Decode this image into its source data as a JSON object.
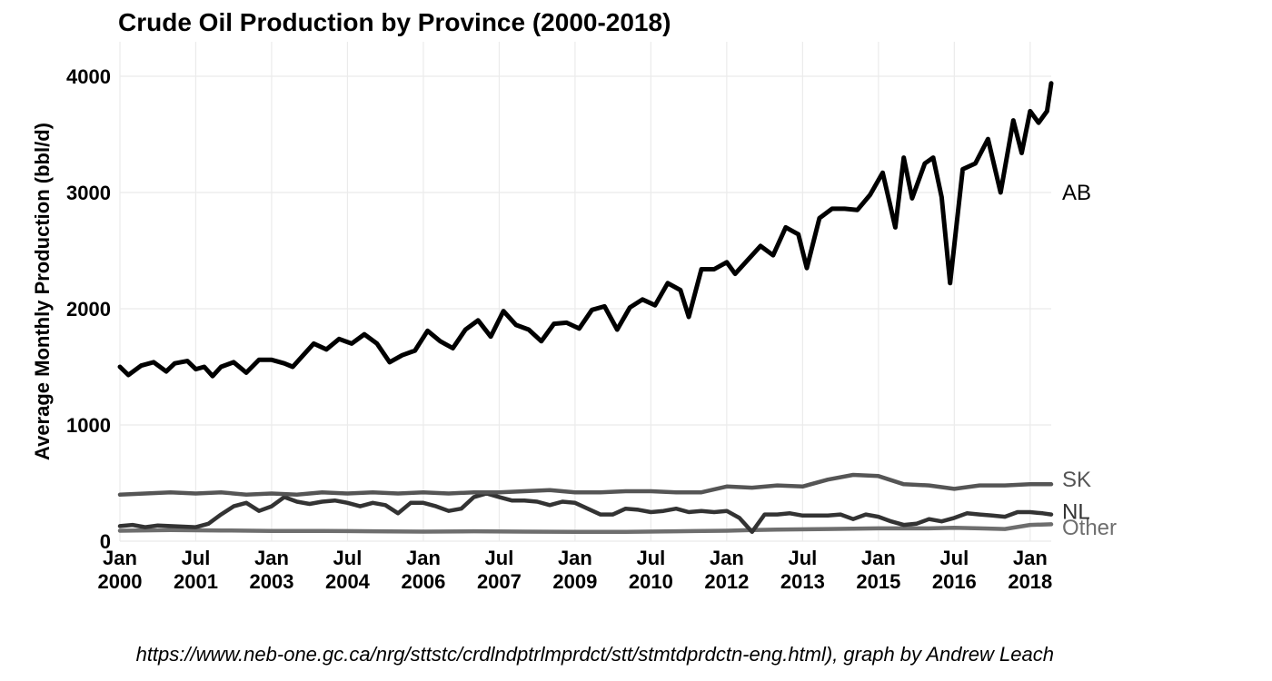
{
  "caption": "https://www.neb-one.gc.ca/nrg/sttstc/crdlndptrlmprdct/stt/stmtdprdctn-eng.html), graph by Andrew Leach",
  "chart_data": {
    "type": "line",
    "title": "Crude Oil Production by Province (2000-2018)",
    "xlabel": "",
    "ylabel": "Average Monthly Production (bbl/d)",
    "ylim": [
      0,
      4000
    ],
    "xlim": [
      "2000-01",
      "2018-06"
    ],
    "grid": true,
    "legend": "direct labels at right end of lines",
    "y_ticks": [
      "0",
      "1000",
      "2000",
      "3000",
      "4000"
    ],
    "x_ticks": [
      {
        "date": "2000-01",
        "line1": "Jan",
        "line2": "2000"
      },
      {
        "date": "2001-07",
        "line1": "Jul",
        "line2": "2001"
      },
      {
        "date": "2003-01",
        "line1": "Jan",
        "line2": "2003"
      },
      {
        "date": "2004-07",
        "line1": "Jul",
        "line2": "2004"
      },
      {
        "date": "2006-01",
        "line1": "Jan",
        "line2": "2006"
      },
      {
        "date": "2007-07",
        "line1": "Jul",
        "line2": "2007"
      },
      {
        "date": "2009-01",
        "line1": "Jan",
        "line2": "2009"
      },
      {
        "date": "2010-07",
        "line1": "Jul",
        "line2": "2010"
      },
      {
        "date": "2012-01",
        "line1": "Jan",
        "line2": "2012"
      },
      {
        "date": "2013-07",
        "line1": "Jul",
        "line2": "2013"
      },
      {
        "date": "2015-01",
        "line1": "Jan",
        "line2": "2015"
      },
      {
        "date": "2016-07",
        "line1": "Jul",
        "line2": "2016"
      },
      {
        "date": "2018-01",
        "line1": "Jan",
        "line2": "2018"
      }
    ],
    "series": [
      {
        "name": "Other",
        "color": "#6e6e6e",
        "label_value": 140,
        "points": [
          [
            "2000-01",
            90
          ],
          [
            "2001-01",
            95
          ],
          [
            "2002-01",
            92
          ],
          [
            "2003-01",
            88
          ],
          [
            "2004-01",
            88
          ],
          [
            "2005-01",
            85
          ],
          [
            "2006-01",
            82
          ],
          [
            "2007-01",
            85
          ],
          [
            "2008-01",
            82
          ],
          [
            "2009-01",
            80
          ],
          [
            "2010-01",
            80
          ],
          [
            "2011-01",
            85
          ],
          [
            "2012-01",
            90
          ],
          [
            "2012-07",
            95
          ],
          [
            "2013-01",
            100
          ],
          [
            "2014-01",
            105
          ],
          [
            "2015-01",
            110
          ],
          [
            "2016-01",
            110
          ],
          [
            "2016-07",
            115
          ],
          [
            "2017-01",
            110
          ],
          [
            "2017-07",
            105
          ],
          [
            "2018-01",
            140
          ],
          [
            "2018-06",
            145
          ]
        ]
      },
      {
        "name": "NL",
        "color": "#333333",
        "label_value": 240,
        "points": [
          [
            "2000-01",
            130
          ],
          [
            "2000-04",
            140
          ],
          [
            "2000-07",
            120
          ],
          [
            "2000-10",
            135
          ],
          [
            "2001-01",
            130
          ],
          [
            "2001-07",
            120
          ],
          [
            "2001-10",
            150
          ],
          [
            "2002-01",
            230
          ],
          [
            "2002-04",
            300
          ],
          [
            "2002-07",
            330
          ],
          [
            "2002-10",
            260
          ],
          [
            "2003-01",
            300
          ],
          [
            "2003-04",
            380
          ],
          [
            "2003-07",
            340
          ],
          [
            "2003-10",
            320
          ],
          [
            "2004-01",
            340
          ],
          [
            "2004-04",
            350
          ],
          [
            "2004-07",
            330
          ],
          [
            "2004-10",
            300
          ],
          [
            "2005-01",
            330
          ],
          [
            "2005-04",
            310
          ],
          [
            "2005-07",
            240
          ],
          [
            "2005-10",
            330
          ],
          [
            "2006-01",
            330
          ],
          [
            "2006-04",
            300
          ],
          [
            "2006-07",
            260
          ],
          [
            "2006-10",
            280
          ],
          [
            "2007-01",
            380
          ],
          [
            "2007-04",
            410
          ],
          [
            "2007-07",
            380
          ],
          [
            "2007-10",
            350
          ],
          [
            "2008-01",
            350
          ],
          [
            "2008-04",
            340
          ],
          [
            "2008-07",
            310
          ],
          [
            "2008-10",
            340
          ],
          [
            "2009-01",
            330
          ],
          [
            "2009-04",
            280
          ],
          [
            "2009-07",
            230
          ],
          [
            "2009-10",
            230
          ],
          [
            "2010-01",
            280
          ],
          [
            "2010-04",
            270
          ],
          [
            "2010-07",
            250
          ],
          [
            "2010-10",
            260
          ],
          [
            "2011-01",
            280
          ],
          [
            "2011-04",
            250
          ],
          [
            "2011-07",
            260
          ],
          [
            "2011-10",
            250
          ],
          [
            "2012-01",
            260
          ],
          [
            "2012-04",
            200
          ],
          [
            "2012-07",
            80
          ],
          [
            "2012-10",
            230
          ],
          [
            "2013-01",
            230
          ],
          [
            "2013-04",
            240
          ],
          [
            "2013-07",
            220
          ],
          [
            "2013-10",
            220
          ],
          [
            "2014-01",
            220
          ],
          [
            "2014-04",
            230
          ],
          [
            "2014-07",
            190
          ],
          [
            "2014-10",
            230
          ],
          [
            "2015-01",
            210
          ],
          [
            "2015-04",
            170
          ],
          [
            "2015-07",
            140
          ],
          [
            "2015-10",
            150
          ],
          [
            "2016-01",
            190
          ],
          [
            "2016-04",
            170
          ],
          [
            "2016-07",
            200
          ],
          [
            "2016-10",
            240
          ],
          [
            "2017-01",
            230
          ],
          [
            "2017-04",
            220
          ],
          [
            "2017-07",
            210
          ],
          [
            "2017-10",
            250
          ],
          [
            "2018-01",
            250
          ],
          [
            "2018-04",
            240
          ],
          [
            "2018-06",
            230
          ]
        ]
      },
      {
        "name": "SK",
        "color": "#555555",
        "label_value": 500,
        "points": [
          [
            "2000-01",
            400
          ],
          [
            "2000-07",
            410
          ],
          [
            "2001-01",
            420
          ],
          [
            "2001-07",
            410
          ],
          [
            "2002-01",
            420
          ],
          [
            "2002-07",
            400
          ],
          [
            "2003-01",
            410
          ],
          [
            "2003-07",
            400
          ],
          [
            "2004-01",
            420
          ],
          [
            "2004-07",
            410
          ],
          [
            "2005-01",
            420
          ],
          [
            "2005-07",
            410
          ],
          [
            "2006-01",
            420
          ],
          [
            "2006-07",
            410
          ],
          [
            "2007-01",
            420
          ],
          [
            "2007-07",
            420
          ],
          [
            "2008-01",
            430
          ],
          [
            "2008-07",
            440
          ],
          [
            "2009-01",
            420
          ],
          [
            "2009-07",
            420
          ],
          [
            "2010-01",
            430
          ],
          [
            "2010-07",
            430
          ],
          [
            "2011-01",
            420
          ],
          [
            "2011-07",
            420
          ],
          [
            "2012-01",
            470
          ],
          [
            "2012-07",
            460
          ],
          [
            "2013-01",
            480
          ],
          [
            "2013-07",
            470
          ],
          [
            "2014-01",
            530
          ],
          [
            "2014-07",
            570
          ],
          [
            "2015-01",
            560
          ],
          [
            "2015-07",
            490
          ],
          [
            "2016-01",
            480
          ],
          [
            "2016-07",
            450
          ],
          [
            "2017-01",
            480
          ],
          [
            "2017-07",
            480
          ],
          [
            "2018-01",
            490
          ],
          [
            "2018-06",
            490
          ]
        ]
      },
      {
        "name": "AB",
        "color": "#000000",
        "label_value": 3000,
        "points": [
          [
            "2000-01",
            1500
          ],
          [
            "2000-03",
            1430
          ],
          [
            "2000-06",
            1510
          ],
          [
            "2000-09",
            1540
          ],
          [
            "2000-12",
            1460
          ],
          [
            "2001-02",
            1530
          ],
          [
            "2001-05",
            1550
          ],
          [
            "2001-07",
            1480
          ],
          [
            "2001-09",
            1500
          ],
          [
            "2001-11",
            1420
          ],
          [
            "2002-01",
            1500
          ],
          [
            "2002-04",
            1540
          ],
          [
            "2002-07",
            1450
          ],
          [
            "2002-10",
            1560
          ],
          [
            "2003-01",
            1560
          ],
          [
            "2003-04",
            1530
          ],
          [
            "2003-06",
            1500
          ],
          [
            "2003-09",
            1620
          ],
          [
            "2003-11",
            1700
          ],
          [
            "2004-02",
            1650
          ],
          [
            "2004-05",
            1740
          ],
          [
            "2004-08",
            1700
          ],
          [
            "2004-11",
            1780
          ],
          [
            "2005-02",
            1700
          ],
          [
            "2005-05",
            1540
          ],
          [
            "2005-08",
            1600
          ],
          [
            "2005-11",
            1640
          ],
          [
            "2006-02",
            1810
          ],
          [
            "2006-05",
            1720
          ],
          [
            "2006-08",
            1660
          ],
          [
            "2006-11",
            1820
          ],
          [
            "2007-02",
            1900
          ],
          [
            "2007-05",
            1760
          ],
          [
            "2007-08",
            1980
          ],
          [
            "2007-11",
            1860
          ],
          [
            "2008-02",
            1820
          ],
          [
            "2008-05",
            1720
          ],
          [
            "2008-08",
            1870
          ],
          [
            "2008-11",
            1880
          ],
          [
            "2009-02",
            1830
          ],
          [
            "2009-05",
            1990
          ],
          [
            "2009-08",
            2020
          ],
          [
            "2009-11",
            1820
          ],
          [
            "2010-02",
            2010
          ],
          [
            "2010-05",
            2080
          ],
          [
            "2010-08",
            2030
          ],
          [
            "2010-11",
            2220
          ],
          [
            "2011-02",
            2160
          ],
          [
            "2011-04",
            1930
          ],
          [
            "2011-07",
            2340
          ],
          [
            "2011-10",
            2340
          ],
          [
            "2012-01",
            2400
          ],
          [
            "2012-03",
            2300
          ],
          [
            "2012-06",
            2420
          ],
          [
            "2012-09",
            2540
          ],
          [
            "2012-12",
            2460
          ],
          [
            "2013-03",
            2700
          ],
          [
            "2013-06",
            2640
          ],
          [
            "2013-08",
            2350
          ],
          [
            "2013-11",
            2780
          ],
          [
            "2014-02",
            2860
          ],
          [
            "2014-05",
            2860
          ],
          [
            "2014-08",
            2850
          ],
          [
            "2014-11",
            2980
          ],
          [
            "2015-02",
            3170
          ],
          [
            "2015-05",
            2700
          ],
          [
            "2015-07",
            3300
          ],
          [
            "2015-09",
            2950
          ],
          [
            "2015-12",
            3250
          ],
          [
            "2016-02",
            3300
          ],
          [
            "2016-04",
            2960
          ],
          [
            "2016-06",
            2220
          ],
          [
            "2016-09",
            3200
          ],
          [
            "2016-12",
            3250
          ],
          [
            "2017-03",
            3460
          ],
          [
            "2017-06",
            3000
          ],
          [
            "2017-09",
            3620
          ],
          [
            "2017-11",
            3340
          ],
          [
            "2018-01",
            3700
          ],
          [
            "2018-03",
            3600
          ],
          [
            "2018-05",
            3700
          ],
          [
            "2018-06",
            3940
          ]
        ]
      }
    ]
  }
}
